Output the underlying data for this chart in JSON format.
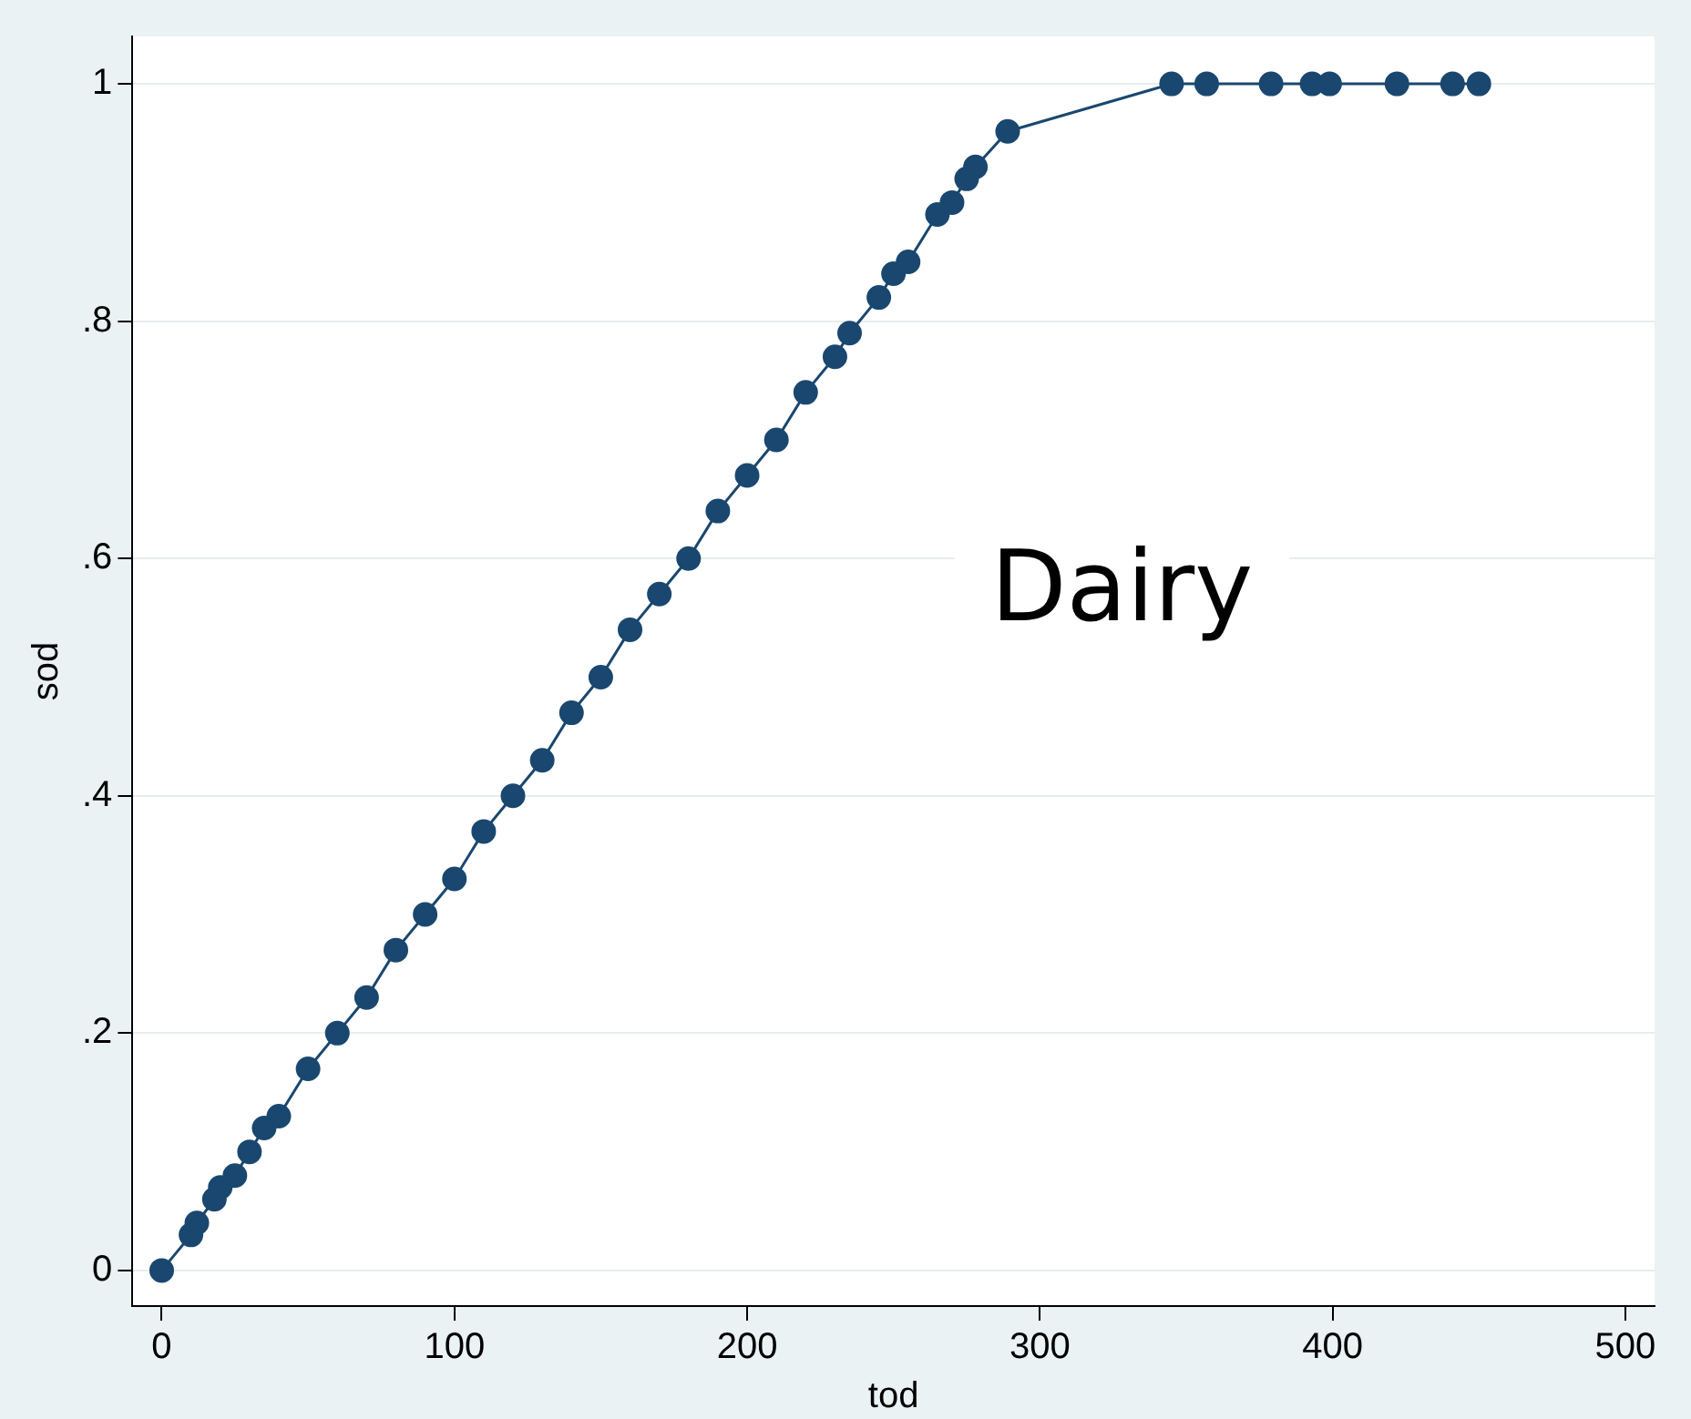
{
  "chart_data": {
    "type": "line",
    "xlabel": "tod",
    "ylabel": "sod",
    "annotations": [
      "Dairy"
    ],
    "x": [
      0,
      10,
      12,
      18,
      20,
      25,
      30,
      35,
      40,
      50,
      60,
      70,
      80,
      90,
      100,
      110,
      120,
      130,
      140,
      150,
      160,
      170,
      180,
      190,
      200,
      210,
      220,
      230,
      235,
      245,
      250,
      255,
      265,
      270,
      275,
      278,
      289,
      345,
      357,
      379,
      393,
      399,
      422,
      441,
      450
    ],
    "series": [
      {
        "color": "#1a476f",
        "values": [
          0,
          0.03,
          0.04,
          0.06,
          0.07,
          0.08,
          0.1,
          0.12,
          0.13,
          0.17,
          0.2,
          0.23,
          0.27,
          0.3,
          0.33,
          0.37,
          0.4,
          0.43,
          0.47,
          0.5,
          0.54,
          0.57,
          0.6,
          0.64,
          0.67,
          0.7,
          0.74,
          0.77,
          0.79,
          0.82,
          0.84,
          0.85,
          0.89,
          0.9,
          0.92,
          0.93,
          0.96,
          1,
          1,
          1,
          1,
          1,
          1,
          1,
          1
        ]
      }
    ],
    "xlim": [
      -10,
      510
    ],
    "xticks": [
      0,
      100,
      200,
      300,
      400,
      500
    ],
    "ylim": [
      -0.03,
      1.04
    ],
    "yticks": [
      0,
      {
        "value": 0.2,
        "label": ".2"
      },
      {
        "value": 0.4,
        "label": ".4"
      },
      {
        "value": 0.6,
        "label": ".6"
      },
      {
        "value": 0.8,
        "label": ".8"
      },
      1
    ],
    "grid": "y",
    "marker": "circle",
    "line_style": "solid",
    "legend": false
  }
}
